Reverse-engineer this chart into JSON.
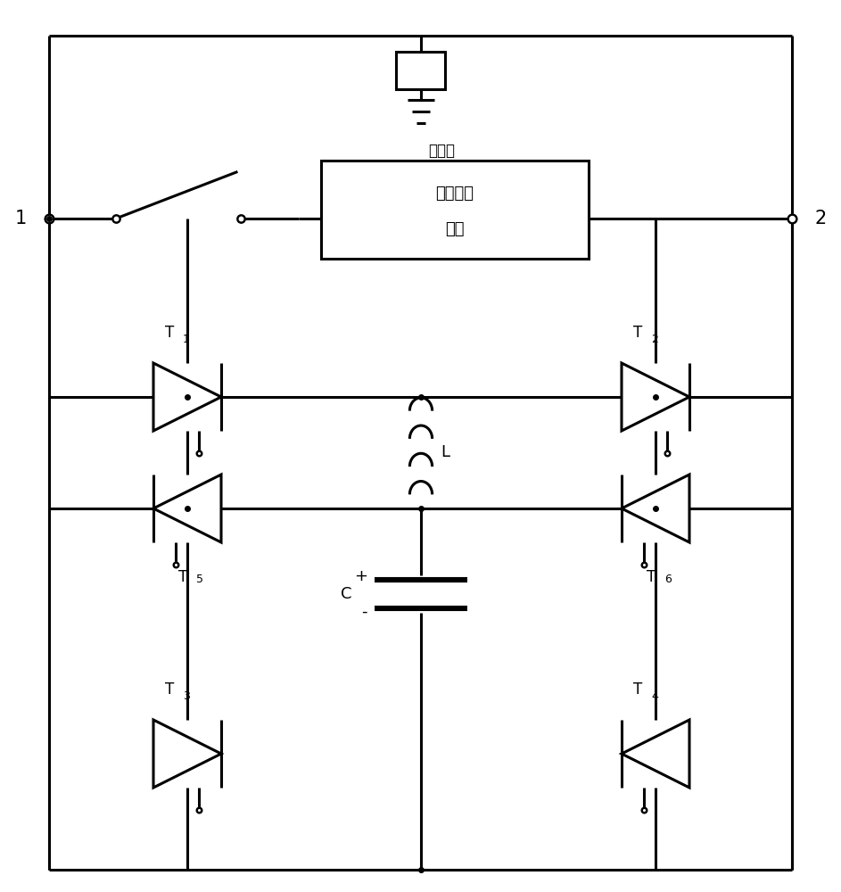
{
  "bg_color": "#ffffff",
  "line_color": "#000000",
  "lw": 2.2,
  "fig_width": 9.43,
  "fig_height": 10.0,
  "labels": {
    "node1": "1",
    "node2": "2",
    "T1": "T",
    "T1_sub": "1",
    "T2": "T",
    "T2_sub": "2",
    "T3": "T",
    "T3_sub": "3",
    "T4": "T",
    "T4_sub": "4",
    "T5": "T",
    "T5_sub": "5",
    "T6": "T",
    "T6_sub": "6",
    "L": "L",
    "C": "C",
    "arrester": "避雷器",
    "current_module_line1": "电流转移",
    "current_module_line2": "模块"
  }
}
